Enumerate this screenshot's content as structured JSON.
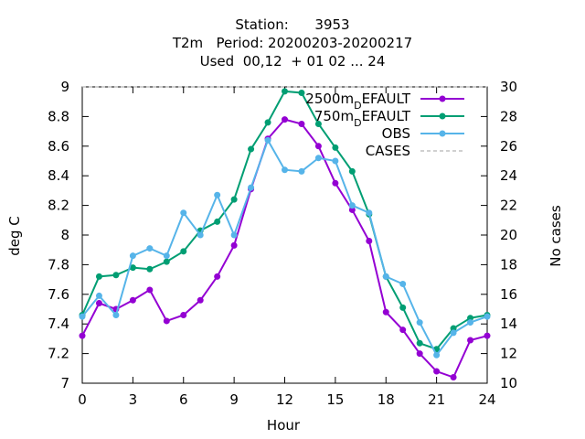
{
  "chart_data": {
    "type": "line",
    "title_lines": [
      "Station:      3953",
      "T2m   Period: 20200203-20200217",
      "Used  00,12  + 01 02 ... 24"
    ],
    "xlabel": "Hour",
    "ylabel": "deg C",
    "y2label": "No cases",
    "xlim": [
      0,
      24
    ],
    "ylim": [
      7,
      9
    ],
    "y2lim": [
      10,
      30
    ],
    "xticks": [
      0,
      3,
      6,
      9,
      12,
      15,
      18,
      21,
      24
    ],
    "yticks": [
      7,
      7.2,
      7.4,
      7.6,
      7.8,
      8,
      8.2,
      8.4,
      8.6,
      8.8,
      9
    ],
    "y2ticks": [
      10,
      12,
      14,
      16,
      18,
      20,
      22,
      24,
      26,
      28,
      30
    ],
    "grid": false,
    "legend_position": "top-right",
    "x": [
      0,
      1,
      2,
      3,
      4,
      5,
      6,
      7,
      8,
      9,
      10,
      11,
      12,
      13,
      14,
      15,
      16,
      17,
      18,
      19,
      20,
      21,
      22,
      23,
      24
    ],
    "series": [
      {
        "name": "2500m_DEFAULT",
        "legend_main": "2500m",
        "legend_sub": "D",
        "legend_tail": "EFAULT",
        "color": "#9400d3",
        "marker": "circle",
        "values": [
          7.32,
          7.54,
          7.5,
          7.56,
          7.63,
          7.42,
          7.46,
          7.56,
          7.72,
          7.93,
          8.31,
          8.65,
          8.78,
          8.75,
          8.6,
          8.35,
          8.17,
          7.96,
          7.48,
          7.36,
          7.2,
          7.08,
          7.04,
          7.29,
          7.32
        ]
      },
      {
        "name": "750m_DEFAULT",
        "legend_main": "750m",
        "legend_sub": "D",
        "legend_tail": "EFAULT",
        "color": "#009e73",
        "marker": "circle",
        "values": [
          7.46,
          7.72,
          7.73,
          7.78,
          7.77,
          7.82,
          7.89,
          8.03,
          8.09,
          8.24,
          8.58,
          8.76,
          8.97,
          8.96,
          8.75,
          8.59,
          8.43,
          8.14,
          7.72,
          7.51,
          7.27,
          7.23,
          7.37,
          7.44,
          7.46
        ]
      },
      {
        "name": "OBS",
        "legend_main": "OBS",
        "legend_sub": "",
        "legend_tail": "",
        "color": "#56b4e9",
        "marker": "circle",
        "values": [
          7.45,
          7.59,
          7.46,
          7.86,
          7.91,
          7.86,
          8.15,
          8.0,
          8.27,
          8.0,
          8.32,
          8.64,
          8.44,
          8.43,
          8.52,
          8.5,
          8.2,
          8.15,
          7.72,
          7.67,
          7.41,
          7.19,
          7.34,
          7.41,
          7.45
        ]
      },
      {
        "name": "CASES",
        "legend_main": "CASES",
        "legend_sub": "",
        "legend_tail": "",
        "color": "#a0a0a0",
        "marker": "none",
        "dashed": true,
        "axis": "y2",
        "values": [
          30,
          30,
          30,
          30,
          30,
          30,
          30,
          30,
          30,
          30,
          30,
          30,
          30,
          30,
          30,
          30,
          30,
          30,
          30,
          30,
          30,
          30,
          30,
          30,
          30
        ]
      }
    ]
  }
}
